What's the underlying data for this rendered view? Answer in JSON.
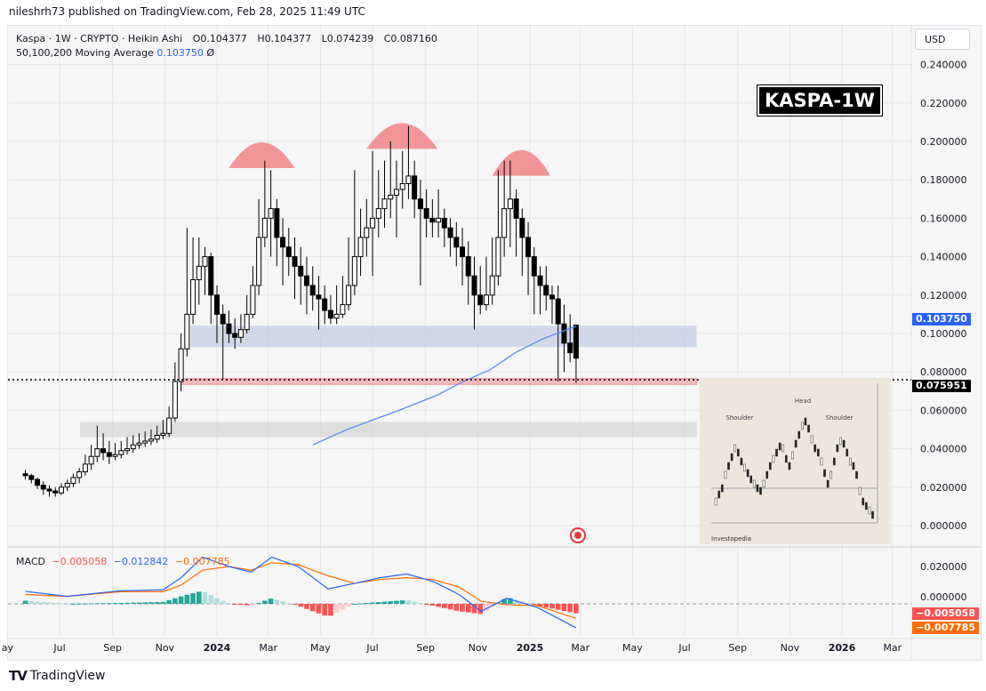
{
  "header": {
    "published": "nileshrh73 published on TradingView.com, Feb 28, 2025 11:49 UTC"
  },
  "legend": {
    "symbol": "Kaspa · 1W · CRYPTO · Heikin Ashi",
    "open": "O0.104377",
    "high": "H0.104377",
    "low": "L0.074239",
    "close": "C0.087160",
    "ma_label": "50,100,200 Moving Average",
    "ma_value": "0.103750",
    "ma_icon": "Ø"
  },
  "currency_button": "USD",
  "title_badge": "KASPA-1W",
  "macd_legend": {
    "label": "MACD",
    "hist": "−0.005058",
    "macd": "−0.012842",
    "signal": "−0.007785"
  },
  "price_badges": {
    "ma": "0.103750",
    "last": "0.075951"
  },
  "macd_badges": {
    "hist": "−0.005058",
    "signal": "−0.007785"
  },
  "inset": {
    "labels": [
      "Shoulder",
      "Head",
      "Shoulder"
    ],
    "brand": "Investopedia"
  },
  "footer": {
    "brand": "TradingView"
  },
  "colors": {
    "up": "#000000",
    "down": "#000000",
    "ma": "#5b8def",
    "macd": "#2962ff",
    "signal": "#ff6d00",
    "hist_up": "#26a69a",
    "hist_up_fade": "#b2dfdb",
    "hist_down": "#ff5252",
    "hist_down_fade": "#ffcdd2",
    "zone_blue": "#c5cde4",
    "zone_red": "#f4a6a8",
    "zone_gray": "#d6d6d6",
    "arc": "#f28b8e"
  },
  "chart_data": {
    "type": "candlestick",
    "style": "Heikin Ashi",
    "interval": "1W",
    "ylim": [
      0,
      0.25
    ],
    "y_ticks": [
      "0.240000",
      "0.220000",
      "0.200000",
      "0.180000",
      "0.160000",
      "0.140000",
      "0.120000",
      "0.100000",
      "0.080000",
      "0.060000",
      "0.040000",
      "0.020000",
      "0.000000"
    ],
    "x_ticks": [
      {
        "label": "ay",
        "date": "2023-05-01"
      },
      {
        "label": "Jul",
        "date": "2023-07-01"
      },
      {
        "label": "Sep",
        "date": "2023-09-01"
      },
      {
        "label": "Nov",
        "date": "2023-11-01"
      },
      {
        "label": "2024",
        "date": "2024-01-01",
        "bold": true
      },
      {
        "label": "Mar",
        "date": "2024-03-01"
      },
      {
        "label": "May",
        "date": "2024-05-01"
      },
      {
        "label": "Jul",
        "date": "2024-07-01"
      },
      {
        "label": "Sep",
        "date": "2024-09-01"
      },
      {
        "label": "Nov",
        "date": "2024-11-01"
      },
      {
        "label": "2025",
        "date": "2025-01-01",
        "bold": true
      },
      {
        "label": "Mar",
        "date": "2025-03-01"
      },
      {
        "label": "May",
        "date": "2025-05-01"
      },
      {
        "label": "Jul",
        "date": "2025-07-01"
      },
      {
        "label": "Sep",
        "date": "2025-09-01"
      },
      {
        "label": "Nov",
        "date": "2025-11-01"
      },
      {
        "label": "2026",
        "date": "2026-01-01",
        "bold": true
      },
      {
        "label": "Mar",
        "date": "2026-03-01"
      }
    ],
    "grid": true,
    "candles": [
      [
        "2023-05-22",
        0.027,
        0.029,
        0.024,
        0.026
      ],
      [
        "2023-05-29",
        0.026,
        0.027,
        0.022,
        0.024
      ],
      [
        "2023-06-05",
        0.024,
        0.025,
        0.019,
        0.021
      ],
      [
        "2023-06-12",
        0.021,
        0.023,
        0.016,
        0.019
      ],
      [
        "2023-06-19",
        0.019,
        0.021,
        0.015,
        0.018
      ],
      [
        "2023-06-26",
        0.018,
        0.02,
        0.015,
        0.017
      ],
      [
        "2023-07-03",
        0.017,
        0.022,
        0.016,
        0.02
      ],
      [
        "2023-07-10",
        0.02,
        0.024,
        0.018,
        0.022
      ],
      [
        "2023-07-17",
        0.022,
        0.027,
        0.02,
        0.025
      ],
      [
        "2023-07-24",
        0.025,
        0.03,
        0.022,
        0.028
      ],
      [
        "2023-07-31",
        0.028,
        0.037,
        0.026,
        0.032
      ],
      [
        "2023-08-07",
        0.032,
        0.042,
        0.029,
        0.036
      ],
      [
        "2023-08-14",
        0.036,
        0.052,
        0.033,
        0.04
      ],
      [
        "2023-08-21",
        0.04,
        0.048,
        0.034,
        0.038
      ],
      [
        "2023-08-28",
        0.038,
        0.044,
        0.032,
        0.036
      ],
      [
        "2023-09-04",
        0.036,
        0.043,
        0.034,
        0.037
      ],
      [
        "2023-09-11",
        0.037,
        0.044,
        0.035,
        0.039
      ],
      [
        "2023-09-18",
        0.039,
        0.046,
        0.037,
        0.04
      ],
      [
        "2023-09-25",
        0.04,
        0.047,
        0.038,
        0.042
      ],
      [
        "2023-10-02",
        0.042,
        0.048,
        0.04,
        0.043
      ],
      [
        "2023-10-09",
        0.043,
        0.049,
        0.041,
        0.044
      ],
      [
        "2023-10-16",
        0.044,
        0.05,
        0.042,
        0.045
      ],
      [
        "2023-10-23",
        0.045,
        0.052,
        0.043,
        0.047
      ],
      [
        "2023-10-30",
        0.047,
        0.055,
        0.045,
        0.048
      ],
      [
        "2023-11-06",
        0.048,
        0.062,
        0.046,
        0.056
      ],
      [
        "2023-11-13",
        0.056,
        0.085,
        0.054,
        0.075
      ],
      [
        "2023-11-20",
        0.075,
        0.1,
        0.07,
        0.092
      ],
      [
        "2023-11-27",
        0.092,
        0.155,
        0.088,
        0.11
      ],
      [
        "2023-12-04",
        0.11,
        0.15,
        0.105,
        0.128
      ],
      [
        "2023-12-11",
        0.128,
        0.15,
        0.115,
        0.135
      ],
      [
        "2023-12-18",
        0.135,
        0.145,
        0.12,
        0.14
      ],
      [
        "2023-12-25",
        0.14,
        0.142,
        0.105,
        0.12
      ],
      [
        "2024-01-01",
        0.12,
        0.125,
        0.095,
        0.11
      ],
      [
        "2024-01-08",
        0.11,
        0.115,
        0.076,
        0.105
      ],
      [
        "2024-01-15",
        0.105,
        0.112,
        0.095,
        0.1
      ],
      [
        "2024-01-22",
        0.1,
        0.108,
        0.092,
        0.098
      ],
      [
        "2024-01-29",
        0.098,
        0.11,
        0.095,
        0.102
      ],
      [
        "2024-02-05",
        0.102,
        0.12,
        0.1,
        0.11
      ],
      [
        "2024-02-12",
        0.11,
        0.135,
        0.108,
        0.125
      ],
      [
        "2024-02-19",
        0.125,
        0.17,
        0.12,
        0.15
      ],
      [
        "2024-02-26",
        0.15,
        0.19,
        0.145,
        0.16
      ],
      [
        "2024-03-04",
        0.16,
        0.185,
        0.14,
        0.165
      ],
      [
        "2024-03-11",
        0.165,
        0.17,
        0.135,
        0.15
      ],
      [
        "2024-03-18",
        0.15,
        0.16,
        0.125,
        0.145
      ],
      [
        "2024-03-25",
        0.145,
        0.155,
        0.13,
        0.14
      ],
      [
        "2024-04-01",
        0.14,
        0.15,
        0.118,
        0.135
      ],
      [
        "2024-04-08",
        0.135,
        0.145,
        0.115,
        0.13
      ],
      [
        "2024-04-15",
        0.13,
        0.14,
        0.11,
        0.125
      ],
      [
        "2024-04-22",
        0.125,
        0.135,
        0.112,
        0.12
      ],
      [
        "2024-04-29",
        0.12,
        0.13,
        0.102,
        0.118
      ],
      [
        "2024-05-06",
        0.118,
        0.125,
        0.105,
        0.112
      ],
      [
        "2024-05-13",
        0.112,
        0.12,
        0.105,
        0.108
      ],
      [
        "2024-05-20",
        0.108,
        0.125,
        0.105,
        0.11
      ],
      [
        "2024-05-27",
        0.11,
        0.13,
        0.108,
        0.115
      ],
      [
        "2024-06-03",
        0.115,
        0.15,
        0.112,
        0.125
      ],
      [
        "2024-06-10",
        0.125,
        0.185,
        0.12,
        0.14
      ],
      [
        "2024-06-17",
        0.14,
        0.165,
        0.13,
        0.15
      ],
      [
        "2024-06-24",
        0.15,
        0.17,
        0.14,
        0.155
      ],
      [
        "2024-07-01",
        0.155,
        0.195,
        0.13,
        0.16
      ],
      [
        "2024-07-08",
        0.16,
        0.185,
        0.15,
        0.165
      ],
      [
        "2024-07-15",
        0.165,
        0.19,
        0.155,
        0.17
      ],
      [
        "2024-07-22",
        0.17,
        0.2,
        0.16,
        0.172
      ],
      [
        "2024-07-29",
        0.172,
        0.19,
        0.15,
        0.175
      ],
      [
        "2024-08-05",
        0.175,
        0.195,
        0.165,
        0.178
      ],
      [
        "2024-08-12",
        0.178,
        0.208,
        0.17,
        0.182
      ],
      [
        "2024-08-19",
        0.182,
        0.19,
        0.16,
        0.17
      ],
      [
        "2024-08-26",
        0.17,
        0.18,
        0.125,
        0.165
      ],
      [
        "2024-09-02",
        0.165,
        0.175,
        0.15,
        0.16
      ],
      [
        "2024-09-09",
        0.16,
        0.17,
        0.15,
        0.158
      ],
      [
        "2024-09-16",
        0.158,
        0.175,
        0.15,
        0.16
      ],
      [
        "2024-09-23",
        0.16,
        0.165,
        0.145,
        0.155
      ],
      [
        "2024-09-30",
        0.155,
        0.16,
        0.14,
        0.15
      ],
      [
        "2024-10-07",
        0.15,
        0.158,
        0.135,
        0.145
      ],
      [
        "2024-10-14",
        0.145,
        0.155,
        0.125,
        0.14
      ],
      [
        "2024-10-21",
        0.14,
        0.148,
        0.115,
        0.13
      ],
      [
        "2024-10-28",
        0.13,
        0.14,
        0.102,
        0.12
      ],
      [
        "2024-11-04",
        0.12,
        0.135,
        0.11,
        0.115
      ],
      [
        "2024-11-11",
        0.115,
        0.14,
        0.112,
        0.12
      ],
      [
        "2024-11-18",
        0.12,
        0.15,
        0.115,
        0.13
      ],
      [
        "2024-11-25",
        0.13,
        0.185,
        0.125,
        0.15
      ],
      [
        "2024-12-02",
        0.15,
        0.19,
        0.14,
        0.165
      ],
      [
        "2024-12-09",
        0.165,
        0.19,
        0.145,
        0.17
      ],
      [
        "2024-12-16",
        0.17,
        0.175,
        0.14,
        0.16
      ],
      [
        "2024-12-23",
        0.16,
        0.165,
        0.13,
        0.15
      ],
      [
        "2024-12-30",
        0.15,
        0.158,
        0.12,
        0.14
      ],
      [
        "2025-01-06",
        0.14,
        0.145,
        0.11,
        0.13
      ],
      [
        "2025-01-13",
        0.13,
        0.135,
        0.11,
        0.125
      ],
      [
        "2025-01-20",
        0.125,
        0.135,
        0.112,
        0.12
      ],
      [
        "2025-01-27",
        0.12,
        0.125,
        0.105,
        0.118
      ],
      [
        "2025-02-03",
        0.118,
        0.125,
        0.075,
        0.105
      ],
      [
        "2025-02-10",
        0.105,
        0.115,
        0.08,
        0.095
      ],
      [
        "2025-02-17",
        0.095,
        0.11,
        0.085,
        0.09
      ],
      [
        "2025-02-24",
        0.104377,
        0.104377,
        0.074239,
        0.08716
      ]
    ],
    "moving_average": [
      [
        "2024-04-22",
        0.042
      ],
      [
        "2024-06-01",
        0.05
      ],
      [
        "2024-08-01",
        0.06
      ],
      [
        "2024-09-15",
        0.068
      ],
      [
        "2024-10-15",
        0.075
      ],
      [
        "2024-11-15",
        0.081
      ],
      [
        "2024-12-15",
        0.09
      ],
      [
        "2025-01-15",
        0.097
      ],
      [
        "2025-02-24",
        0.10375
      ]
    ],
    "last_price": 0.075951,
    "zones": [
      {
        "color": "zone_blue",
        "from": "2023-12-01",
        "to": "2025-07-15",
        "low": 0.093,
        "high": 0.104
      },
      {
        "color": "zone_red",
        "from": "2023-11-20",
        "to": "2025-07-15",
        "low": 0.0735,
        "high": 0.0765
      },
      {
        "color": "zone_gray",
        "from": "2023-07-25",
        "to": "2025-07-15",
        "low": 0.046,
        "high": 0.054
      }
    ],
    "arcs": [
      {
        "from": "2024-01-15",
        "to": "2024-04-01",
        "top": 0.2
      },
      {
        "from": "2024-06-24",
        "to": "2024-09-15",
        "top": 0.21
      },
      {
        "from": "2024-11-18",
        "to": "2025-01-25",
        "top": 0.196
      }
    ],
    "macd": {
      "ylim": [
        -0.012,
        0.027
      ],
      "y_ticks": [
        "0.020000",
        "0.000000"
      ],
      "macd": [
        [
          "2023-05-22",
          0.0067
        ],
        [
          "2023-07-10",
          0.004
        ],
        [
          "2023-09-10",
          0.007
        ],
        [
          "2023-10-30",
          0.0075
        ],
        [
          "2023-11-20",
          0.014
        ],
        [
          "2023-12-15",
          0.025
        ],
        [
          "2024-01-15",
          0.02
        ],
        [
          "2024-02-10",
          0.017
        ],
        [
          "2024-03-05",
          0.025
        ],
        [
          "2024-04-05",
          0.02
        ],
        [
          "2024-05-10",
          0.008
        ],
        [
          "2024-06-10",
          0.011
        ],
        [
          "2024-07-10",
          0.014
        ],
        [
          "2024-08-10",
          0.016
        ],
        [
          "2024-09-10",
          0.012
        ],
        [
          "2024-10-10",
          0.005
        ],
        [
          "2024-11-05",
          -0.004
        ],
        [
          "2024-12-05",
          0.003
        ],
        [
          "2025-01-10",
          -0.002
        ],
        [
          "2025-02-24",
          -0.012842
        ]
      ],
      "signal": [
        [
          "2023-05-22",
          0.005
        ],
        [
          "2023-07-10",
          0.004
        ],
        [
          "2023-09-10",
          0.0065
        ],
        [
          "2023-10-30",
          0.0065
        ],
        [
          "2023-11-20",
          0.01
        ],
        [
          "2023-12-15",
          0.018
        ],
        [
          "2024-01-15",
          0.02
        ],
        [
          "2024-02-10",
          0.018
        ],
        [
          "2024-03-05",
          0.022
        ],
        [
          "2024-04-05",
          0.021
        ],
        [
          "2024-05-10",
          0.015
        ],
        [
          "2024-06-10",
          0.011
        ],
        [
          "2024-07-10",
          0.013
        ],
        [
          "2024-08-10",
          0.014
        ],
        [
          "2024-09-10",
          0.013
        ],
        [
          "2024-10-10",
          0.009
        ],
        [
          "2024-11-05",
          0.0014
        ],
        [
          "2024-12-05",
          -0.0005
        ],
        [
          "2025-01-10",
          -0.001
        ],
        [
          "2025-02-24",
          -0.007785
        ]
      ]
    }
  }
}
